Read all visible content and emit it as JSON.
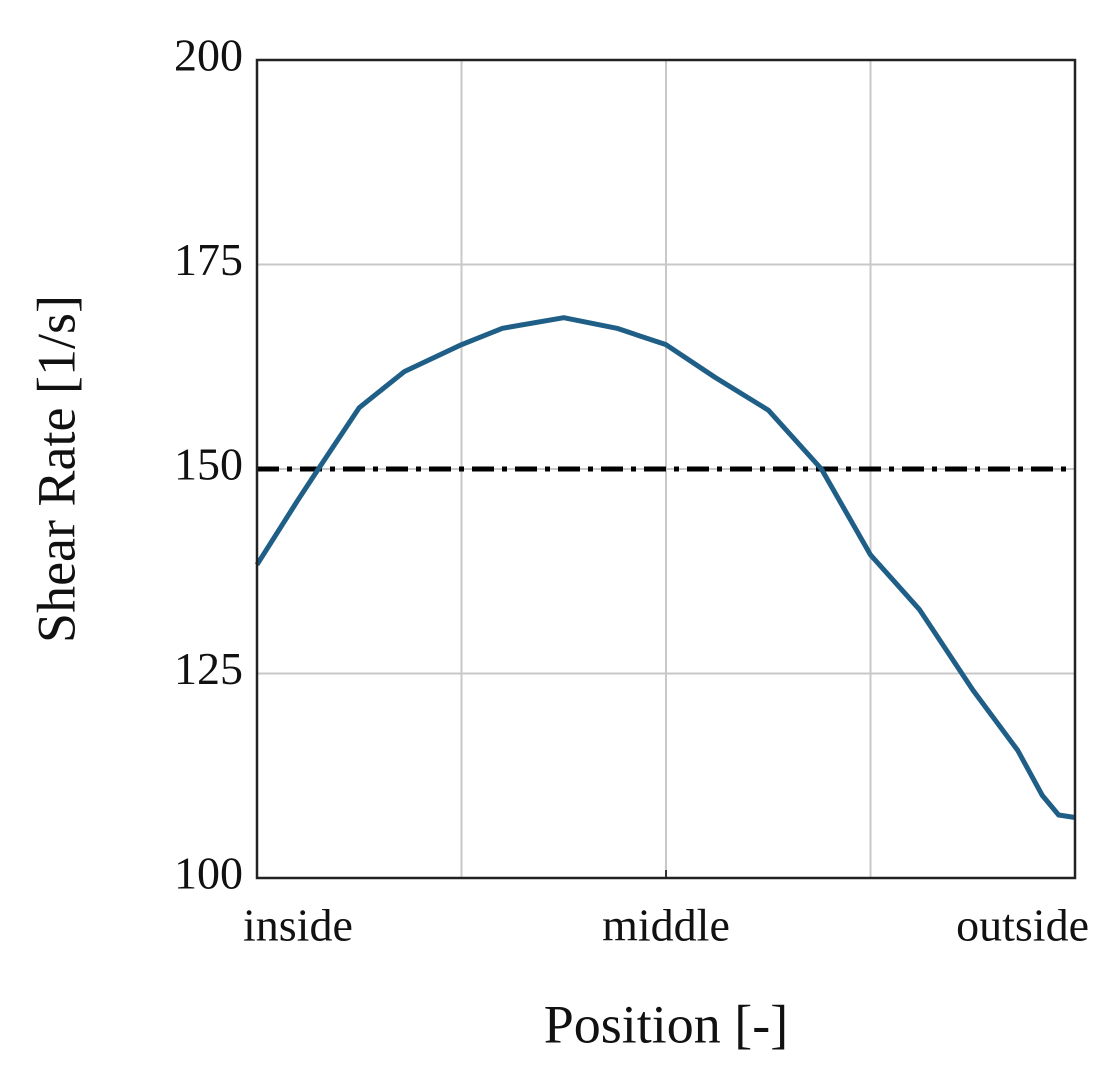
{
  "chart_data": {
    "type": "line",
    "xlabel": "Position [-]",
    "ylabel": "Shear Rate [1/s]",
    "x": [
      0,
      0.05,
      0.075,
      0.125,
      0.18,
      0.25,
      0.3,
      0.375,
      0.44,
      0.5,
      0.56,
      0.625,
      0.69,
      0.75,
      0.81,
      0.875,
      0.93,
      0.96,
      0.98,
      1
    ],
    "series": [
      {
        "color": "#1f5f87",
        "values": [
          138.3,
          146.2,
          150,
          157.5,
          161.9,
          165.2,
          167.2,
          168.5,
          167.2,
          165.2,
          161.2,
          157.2,
          150,
          139.5,
          132.8,
          123,
          115.6,
          110.1,
          107.7,
          107.4
        ]
      }
    ],
    "reference_line": {
      "value": 150,
      "color": "#000000"
    },
    "xlim": [
      0,
      1
    ],
    "xticks": [
      {
        "value": 0,
        "label": "inside"
      },
      {
        "value": 0.5,
        "label": "middle"
      },
      {
        "value": 1,
        "label": "outside"
      }
    ],
    "xgrid": [
      0.25,
      0.5,
      0.75
    ],
    "ylim": [
      100,
      200
    ],
    "yticks": [
      100,
      125,
      150,
      175,
      200
    ],
    "grid": true
  }
}
